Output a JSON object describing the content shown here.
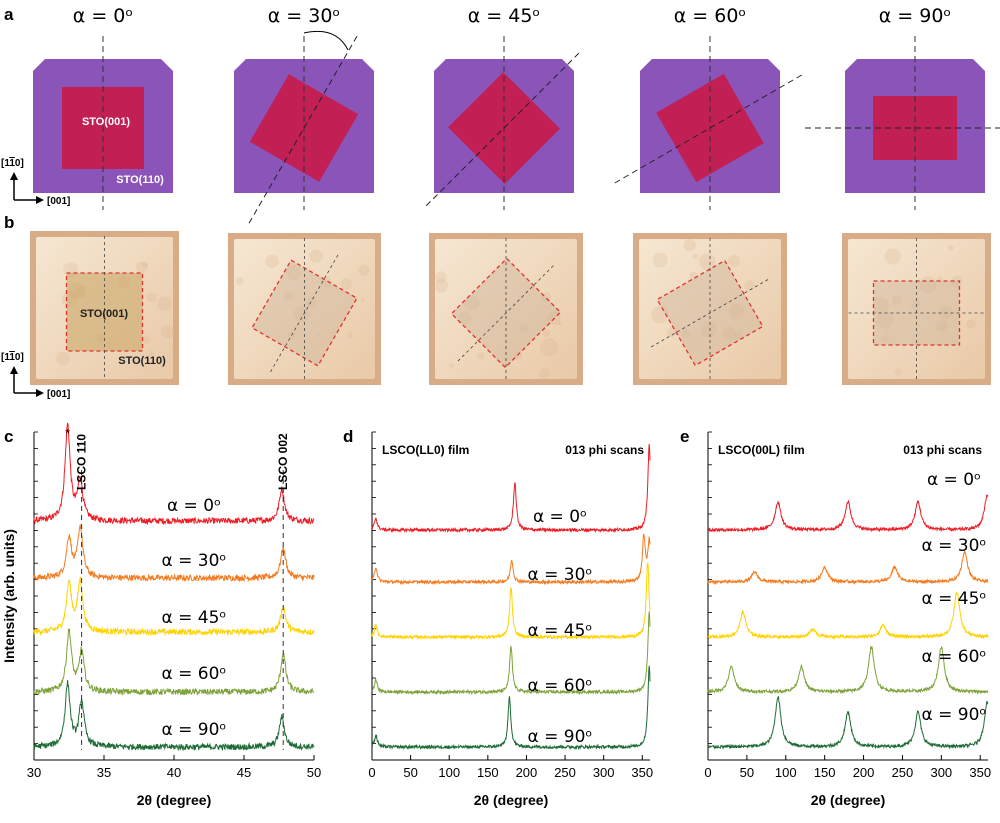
{
  "panel_labels": {
    "a": "a",
    "b": "b",
    "c": "c",
    "d": "d",
    "e": "e"
  },
  "alphas": [
    "α = 0ᵒ",
    "α = 30ᵒ",
    "α = 45ᵒ",
    "α = 60ᵒ",
    "α = 90ᵒ"
  ],
  "rotation_deg": [
    0,
    30,
    45,
    60,
    90
  ],
  "colors": {
    "substrate": "#8a54b8",
    "film": "#c21f54",
    "photo_substrate": "#f0d9bd",
    "photo_bg": "#d8ac86",
    "dashed_red": "#e0332b",
    "series": [
      "#ee1c25",
      "#f47b20",
      "#ffd200",
      "#7da23a",
      "#1e6b35"
    ]
  },
  "panel_a": {
    "sto001": "STO(001)",
    "sto110": "STO(110)",
    "axis_y": "[1",
    "axis_y_bar": "1",
    "axis_y_end": "0]",
    "axis_x": "[001]"
  },
  "panel_b": {
    "sto001": "STO(001)",
    "sto110": "STO(110)",
    "axis_y": "[1",
    "axis_y_bar": "1",
    "axis_y_end": "0]",
    "axis_x": "[001]"
  },
  "chart_data": [
    {
      "id": "c",
      "type": "line",
      "xlabel": "2θ (degree)",
      "ylabel": "Intensity (arb. units)",
      "xlim": [
        30,
        50
      ],
      "xticks": [
        30,
        35,
        40,
        45,
        50
      ],
      "annotations": {
        "star": "*",
        "peak1": "LSCO 110",
        "peak2": "LSCO 002"
      },
      "peak_markers_x": [
        33.4,
        47.8
      ],
      "series": [
        {
          "name": "α = 0ᵒ",
          "peaks": [
            [
              32.4,
              95
            ],
            [
              33.3,
              40
            ],
            [
              47.7,
              32
            ]
          ]
        },
        {
          "name": "α = 30ᵒ",
          "peaks": [
            [
              32.5,
              40
            ],
            [
              33.3,
              50
            ],
            [
              47.8,
              30
            ]
          ]
        },
        {
          "name": "α = 45ᵒ",
          "peaks": [
            [
              32.5,
              48
            ],
            [
              33.3,
              50
            ],
            [
              47.8,
              25
            ]
          ]
        },
        {
          "name": "α = 60ᵒ",
          "peaks": [
            [
              32.5,
              60
            ],
            [
              33.4,
              40
            ],
            [
              47.8,
              38
            ]
          ]
        },
        {
          "name": "α = 90ᵒ",
          "peaks": [
            [
              32.4,
              62
            ],
            [
              33.4,
              45
            ],
            [
              47.7,
              30
            ]
          ]
        }
      ]
    },
    {
      "id": "d",
      "type": "line",
      "title_left": "LSCO(LL0) film",
      "title_right": "013 phi scans",
      "xlabel": "2θ (degree)",
      "xlim": [
        0,
        360
      ],
      "xticks": [
        0,
        50,
        100,
        150,
        200,
        250,
        300,
        350
      ],
      "series": [
        {
          "name": "α = 0ᵒ",
          "peaks": [
            [
              5,
              12
            ],
            [
              185,
              48
            ],
            [
              359,
              85
            ]
          ]
        },
        {
          "name": "α = 30ᵒ",
          "peaks": [
            [
              5,
              15
            ],
            [
              181,
              22
            ],
            [
              352,
              45
            ],
            [
              359,
              40
            ]
          ]
        },
        {
          "name": "α = 45ᵒ",
          "peaks": [
            [
              5,
              12
            ],
            [
              180,
              50
            ],
            [
              357,
              75
            ]
          ]
        },
        {
          "name": "α = 60ᵒ",
          "peaks": [
            [
              5,
              12
            ],
            [
              180,
              45
            ],
            [
              359,
              80
            ]
          ]
        },
        {
          "name": "α = 90ᵒ",
          "peaks": [
            [
              5,
              12
            ],
            [
              178,
              50
            ],
            [
              359,
              80
            ]
          ]
        }
      ]
    },
    {
      "id": "e",
      "type": "line",
      "title_left": "LSCO(00L) film",
      "title_right": "013 phi scans",
      "xlabel": "2θ (degree)",
      "xlim": [
        0,
        360
      ],
      "xticks": [
        0,
        50,
        100,
        150,
        200,
        250,
        300,
        350
      ],
      "series": [
        {
          "name": "α = 0ᵒ",
          "peaks": [
            [
              90,
              28
            ],
            [
              180,
              28
            ],
            [
              270,
              28
            ],
            [
              359,
              35
            ]
          ]
        },
        {
          "name": "α = 30ᵒ",
          "peaks": [
            [
              60,
              10
            ],
            [
              150,
              15
            ],
            [
              240,
              15
            ],
            [
              330,
              30
            ]
          ]
        },
        {
          "name": "α = 45ᵒ",
          "peaks": [
            [
              45,
              25
            ],
            [
              135,
              8
            ],
            [
              225,
              12
            ],
            [
              320,
              45
            ]
          ]
        },
        {
          "name": "α = 60ᵒ",
          "peaks": [
            [
              30,
              25
            ],
            [
              120,
              25
            ],
            [
              210,
              45
            ],
            [
              300,
              45
            ]
          ]
        },
        {
          "name": "α = 90ᵒ",
          "peaks": [
            [
              90,
              50
            ],
            [
              180,
              35
            ],
            [
              270,
              35
            ],
            [
              359,
              45
            ]
          ]
        }
      ]
    }
  ]
}
